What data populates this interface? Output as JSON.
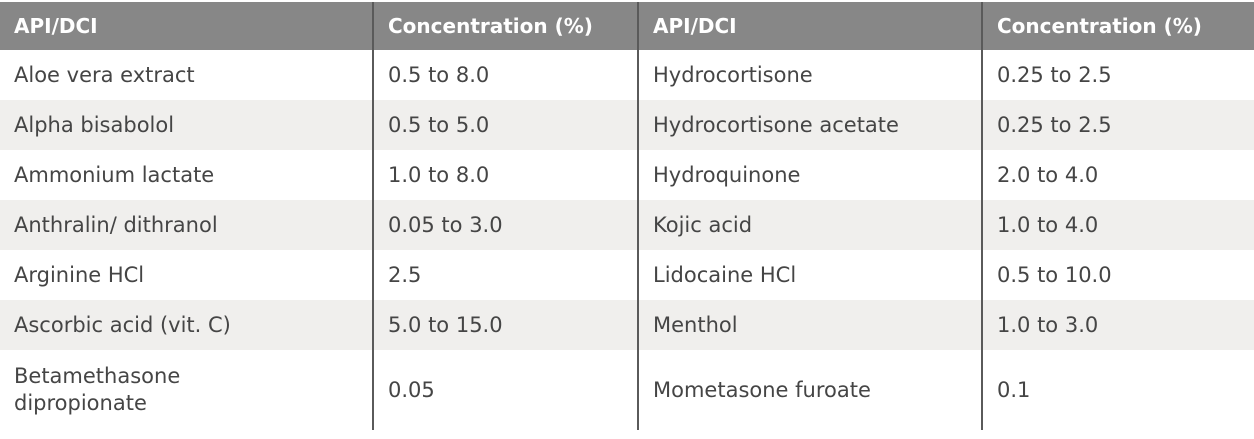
{
  "headers": [
    "API/DCI",
    "Concentration (%)",
    "API/DCI",
    "Concentration (%)"
  ],
  "rows": [
    [
      "Aloe vera extract",
      "0.5 to 8.0",
      "Hydrocortisone",
      "0.25 to 2.5"
    ],
    [
      "Alpha bisabolol",
      "0.5 to 5.0",
      "Hydrocortisone acetate",
      "0.25 to 2.5"
    ],
    [
      "Ammonium lactate",
      "1.0 to 8.0",
      "Hydroquinone",
      "2.0 to 4.0"
    ],
    [
      "Anthralin/ dithranol",
      "0.05 to 3.0",
      "Kojic acid",
      "1.0 to 4.0"
    ],
    [
      "Arginine HCl",
      "2.5",
      "Lidocaine HCl",
      "0.5 to 10.0"
    ],
    [
      "Ascorbic acid (vit. C)",
      "5.0 to 15.0",
      "Menthol",
      "1.0 to 3.0"
    ],
    [
      "Betamethasone dipropionate",
      "0.05",
      "Mometasone furoate",
      "0.1"
    ]
  ],
  "colors": {
    "header_bg": "#878787",
    "alt_row_bg": "#f0efed",
    "text": "#454545"
  }
}
